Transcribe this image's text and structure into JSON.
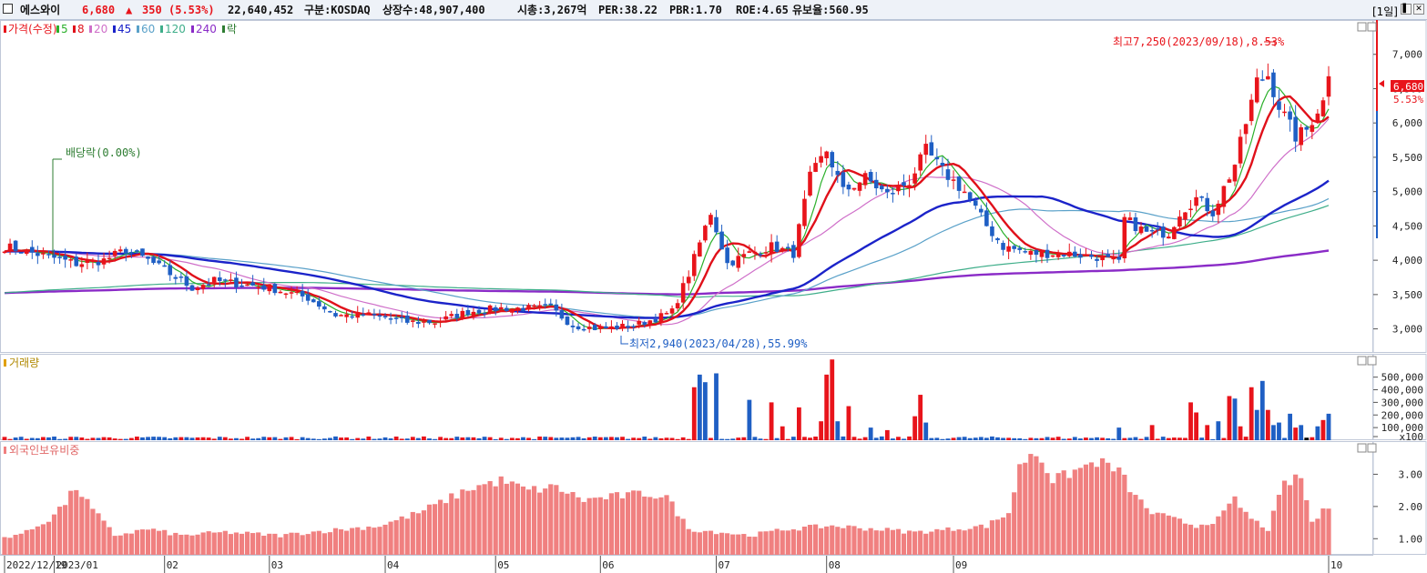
{
  "header": {
    "name": "에스와이",
    "price": "6,680",
    "change_arrow": "▲",
    "change": "350",
    "change_pct": "(5.53%)",
    "volume": "22,640,452",
    "market": "구분:KOSDAQ",
    "shares": "상장수:48,907,400",
    "mcap": "시총:3,267억",
    "per": "PER:38.22",
    "pbr": "PBR:1.70",
    "roe": "ROE:4.65",
    "reserve": "유보율:560.95",
    "period": "[1일]",
    "minimize_label": "▌",
    "close_label": "✕"
  },
  "colors": {
    "up": "#e8141b",
    "down": "#1f5fc4",
    "ma5": "#2bb02b",
    "ma8": "#e0101a",
    "ma20": "#cf6fc9",
    "ma45": "#1b23c9",
    "ma60": "#5aa1c9",
    "ma120": "#3fae8a",
    "ma240": "#8a2bc7",
    "foreign": "#f08080"
  },
  "legend": [
    {
      "label": "가격(수정)",
      "color": "#e8141b"
    },
    {
      "label": "5",
      "color": "#2bb02b"
    },
    {
      "label": "8",
      "color": "#e0101a"
    },
    {
      "label": "20",
      "color": "#cf6fc9"
    },
    {
      "label": "45",
      "color": "#1b23c9"
    },
    {
      "label": "60",
      "color": "#5aa1c9"
    },
    {
      "label": "120",
      "color": "#3fae8a"
    },
    {
      "label": "240",
      "color": "#8a2bc7"
    },
    {
      "label": "락",
      "color": "#2e7d32"
    }
  ],
  "annotations": {
    "high": "최고7,250(2023/09/18),8.53%",
    "low": "최저2,940(2023/04/28),55.99%",
    "dividend": "배당락(0.00%)",
    "last_price": "6,680",
    "last_pct": "5.53%"
  },
  "chart_data": {
    "type": "candlestick",
    "price_ylim": [
      2650,
      7500
    ],
    "price_ticks": [
      "7,000",
      "6,500",
      "6,000",
      "5,500",
      "5,000",
      "4,500",
      "4,000",
      "3,500",
      "3,000"
    ],
    "price_tick_values": [
      7000,
      6500,
      6000,
      5500,
      5000,
      4500,
      4000,
      3500,
      3000
    ],
    "x_labels": [
      "2022/12/19",
      "2023/01",
      "02",
      "03",
      "04",
      "05",
      "06",
      "07",
      "08",
      "09",
      "10"
    ],
    "price_waypoints": [
      [
        0,
        4200
      ],
      [
        8,
        4050
      ],
      [
        13,
        3950
      ],
      [
        18,
        4000
      ],
      [
        22,
        4150
      ],
      [
        26,
        4000
      ],
      [
        30,
        3800
      ],
      [
        34,
        3600
      ],
      [
        38,
        3700
      ],
      [
        43,
        3650
      ],
      [
        48,
        3600
      ],
      [
        55,
        3450
      ],
      [
        60,
        3200
      ],
      [
        67,
        3200
      ],
      [
        73,
        3100
      ],
      [
        78,
        3100
      ],
      [
        84,
        3250
      ],
      [
        90,
        3300
      ],
      [
        95,
        3300
      ],
      [
        99,
        3300
      ],
      [
        103,
        3050
      ],
      [
        108,
        3000
      ],
      [
        114,
        3050
      ],
      [
        118,
        3150
      ],
      [
        121,
        3250
      ],
      [
        124,
        3800
      ],
      [
        128,
        4700
      ],
      [
        131,
        3950
      ],
      [
        135,
        4100
      ],
      [
        139,
        4200
      ],
      [
        143,
        4100
      ],
      [
        146,
        5200
      ],
      [
        149,
        5600
      ],
      [
        152,
        5000
      ],
      [
        156,
        5200
      ],
      [
        160,
        4950
      ],
      [
        164,
        5150
      ],
      [
        167,
        5600
      ],
      [
        170,
        5300
      ],
      [
        174,
        5000
      ],
      [
        178,
        4500
      ],
      [
        181,
        4200
      ],
      [
        186,
        4100
      ],
      [
        192,
        4100
      ],
      [
        198,
        4050
      ],
      [
        202,
        3950
      ],
      [
        203,
        4600
      ],
      [
        207,
        4400
      ],
      [
        211,
        4400
      ],
      [
        213,
        4700
      ],
      [
        216,
        4900
      ],
      [
        219,
        4700
      ],
      [
        223,
        5400
      ],
      [
        227,
        6600
      ],
      [
        229,
        6700
      ],
      [
        231,
        6250
      ],
      [
        234,
        5800
      ],
      [
        236,
        5900
      ],
      [
        238,
        6200
      ],
      [
        240,
        6650
      ]
    ],
    "volume_ylim": [
      0,
      620000
    ],
    "volume_ticks": [
      "500,000",
      "400,000",
      "300,000",
      "200,000",
      "100,000",
      "x100"
    ],
    "volume_tick_values": [
      500000,
      400000,
      300000,
      200000,
      100000,
      0
    ],
    "volume_spikes": [
      [
        125,
        420000,
        "up"
      ],
      [
        126,
        520000,
        "down"
      ],
      [
        127,
        460000,
        "down"
      ],
      [
        129,
        530000,
        "down"
      ],
      [
        135,
        320000,
        "down"
      ],
      [
        139,
        300000,
        "up"
      ],
      [
        141,
        110000,
        "up"
      ],
      [
        144,
        260000,
        "up"
      ],
      [
        148,
        150000,
        "up"
      ],
      [
        149,
        520000,
        "up"
      ],
      [
        150,
        640000,
        "up"
      ],
      [
        151,
        150000,
        "down"
      ],
      [
        153,
        270000,
        "up"
      ],
      [
        157,
        100000,
        "down"
      ],
      [
        160,
        80000,
        "up"
      ],
      [
        165,
        190000,
        "up"
      ],
      [
        166,
        360000,
        "up"
      ],
      [
        167,
        140000,
        "down"
      ],
      [
        202,
        100000,
        "down"
      ],
      [
        208,
        120000,
        "up"
      ],
      [
        215,
        300000,
        "up"
      ],
      [
        216,
        220000,
        "up"
      ],
      [
        218,
        120000,
        "up"
      ],
      [
        220,
        150000,
        "down"
      ],
      [
        222,
        350000,
        "up"
      ],
      [
        223,
        330000,
        "down"
      ],
      [
        224,
        110000,
        "up"
      ],
      [
        226,
        420000,
        "up"
      ],
      [
        227,
        240000,
        "down"
      ],
      [
        228,
        470000,
        "down"
      ],
      [
        229,
        240000,
        "up"
      ],
      [
        230,
        120000,
        "down"
      ],
      [
        231,
        140000,
        "down"
      ],
      [
        233,
        210000,
        "down"
      ],
      [
        234,
        100000,
        "up"
      ],
      [
        235,
        120000,
        "down"
      ],
      [
        236,
        20000,
        "flat"
      ],
      [
        238,
        110000,
        "down"
      ],
      [
        239,
        160000,
        "up"
      ],
      [
        240,
        210000,
        "down"
      ]
    ],
    "foreign_ylim": [
      0.5,
      4.0
    ],
    "foreign_ticks": [
      "3.00",
      "2.00",
      "1.00"
    ],
    "foreign_tick_values": [
      3.0,
      2.0,
      1.0
    ],
    "foreign_waypoints": [
      [
        0,
        1.05
      ],
      [
        4,
        1.2
      ],
      [
        8,
        1.6
      ],
      [
        11,
        2.1
      ],
      [
        13,
        2.6
      ],
      [
        16,
        1.9
      ],
      [
        20,
        1.1
      ],
      [
        26,
        1.3
      ],
      [
        32,
        1.1
      ],
      [
        40,
        1.2
      ],
      [
        50,
        1.1
      ],
      [
        55,
        1.2
      ],
      [
        62,
        1.3
      ],
      [
        68,
        1.4
      ],
      [
        75,
        1.8
      ],
      [
        80,
        2.2
      ],
      [
        85,
        2.6
      ],
      [
        90,
        2.8
      ],
      [
        95,
        2.5
      ],
      [
        100,
        2.6
      ],
      [
        105,
        2.2
      ],
      [
        110,
        2.3
      ],
      [
        116,
        2.4
      ],
      [
        120,
        2.3
      ],
      [
        124,
        1.3
      ],
      [
        130,
        1.2
      ],
      [
        135,
        1.1
      ],
      [
        142,
        1.3
      ],
      [
        150,
        1.4
      ],
      [
        158,
        1.3
      ],
      [
        165,
        1.2
      ],
      [
        172,
        1.3
      ],
      [
        178,
        1.4
      ],
      [
        182,
        1.8
      ],
      [
        184,
        3.2
      ],
      [
        186,
        3.7
      ],
      [
        188,
        3.5
      ],
      [
        190,
        2.8
      ],
      [
        194,
        3.1
      ],
      [
        198,
        3.4
      ],
      [
        202,
        3.1
      ],
      [
        205,
        2.3
      ],
      [
        208,
        1.8
      ],
      [
        212,
        1.6
      ],
      [
        216,
        1.4
      ],
      [
        220,
        1.6
      ],
      [
        223,
        2.2
      ],
      [
        226,
        1.6
      ],
      [
        229,
        1.3
      ],
      [
        232,
        2.7
      ],
      [
        235,
        2.9
      ],
      [
        237,
        1.5
      ],
      [
        240,
        2.0
      ]
    ]
  },
  "panels": {
    "volume_title": "거래량",
    "foreign_title": "외국인보유비중"
  }
}
